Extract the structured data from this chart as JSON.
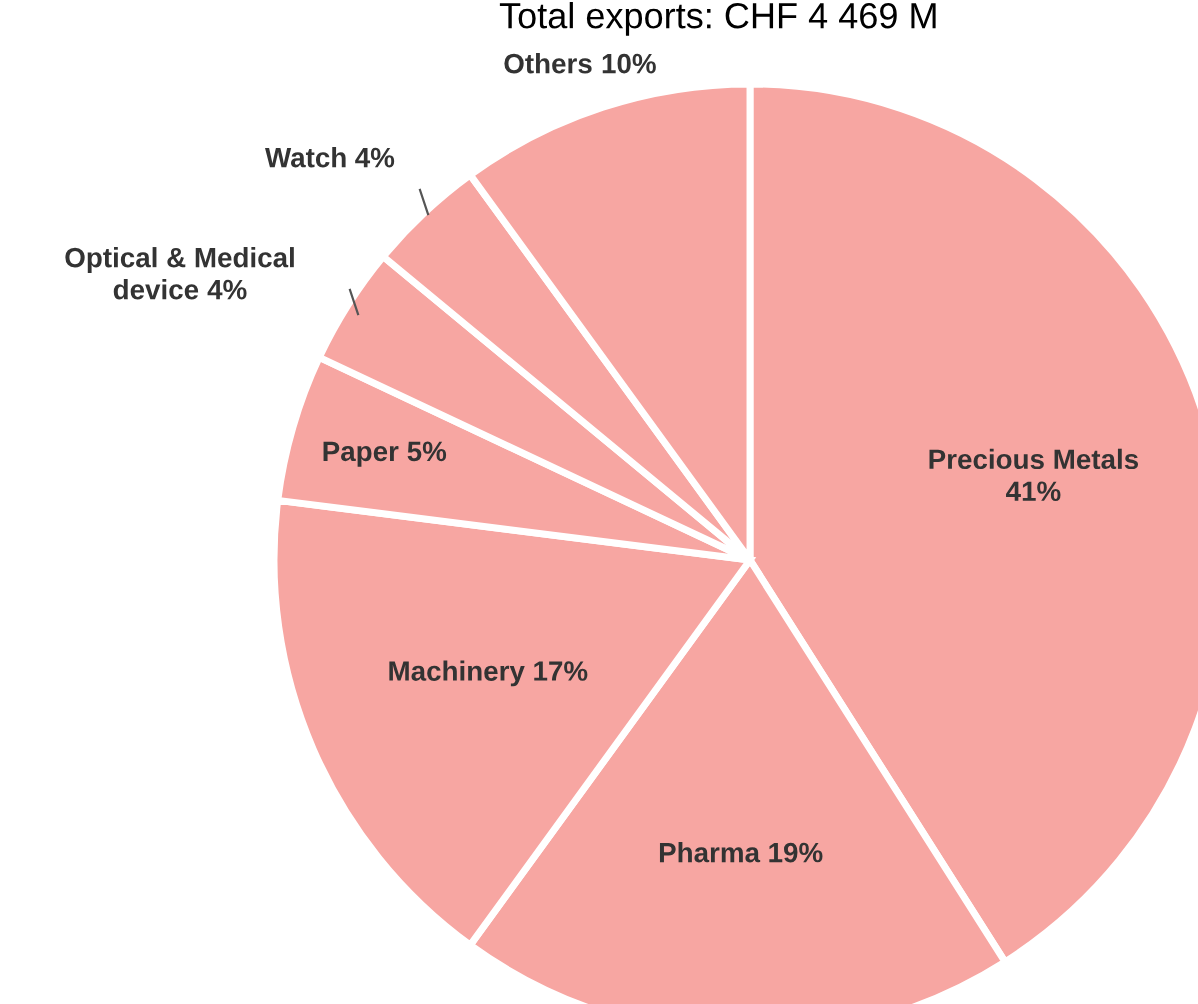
{
  "chart_data": {
    "type": "pie",
    "title": "Total exports: CHF 4 469 M",
    "categories": [
      "Precious Metals",
      "Pharma",
      "Machinery",
      "Paper",
      "Optical & Medical device",
      "Watch",
      "Others"
    ],
    "values": [
      41,
      19,
      17,
      5,
      4,
      4,
      10
    ],
    "value_labels": [
      "41%",
      "19%",
      "17%",
      "5%",
      "4%",
      "4%",
      "10%"
    ],
    "colors": [
      "#f7a6a2",
      "#f7a6a2",
      "#f7a6a2",
      "#f7a6a2",
      "#f7a6a2",
      "#f7a6a2",
      "#f7a6a2"
    ]
  }
}
